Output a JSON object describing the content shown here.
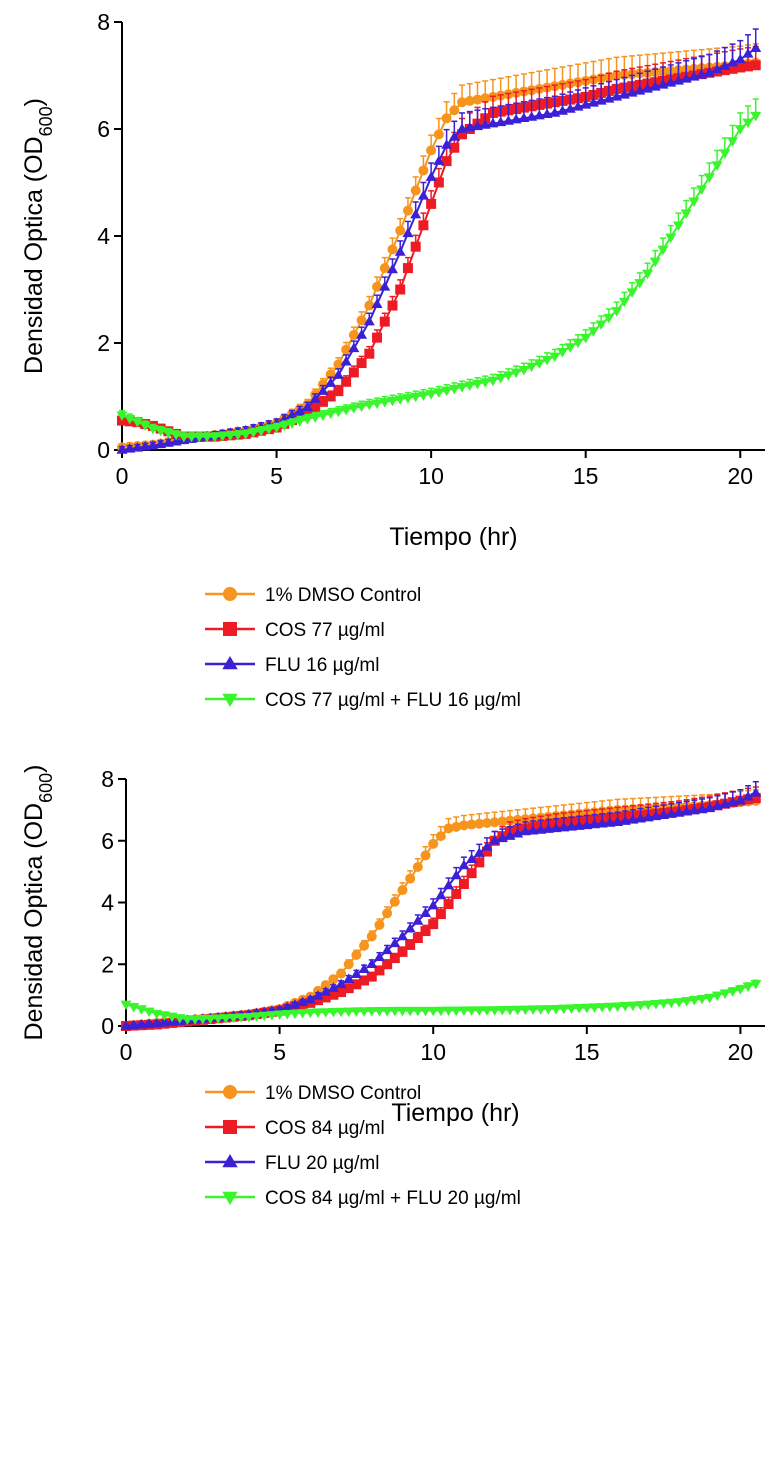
{
  "chart_data": [
    {
      "type": "line",
      "title": "",
      "xlabel": "Tiempo (hr)",
      "ylabel": {
        "main": "Densidad Optica (OD",
        "sub": "600",
        "close": ")"
      },
      "xlim": [
        0,
        20.8
      ],
      "ylim": [
        0,
        8
      ],
      "xticks": [
        "0",
        "5",
        "10",
        "15",
        "20"
      ],
      "yticks": [
        "0",
        "2",
        "4",
        "6",
        "8"
      ],
      "legend_position": "below",
      "series": [
        {
          "name": "1% DMSO Control",
          "color": "#f7941d",
          "marker": "circle",
          "points": [
            [
              0,
              0.05
            ],
            [
              1,
              0.1
            ],
            [
              2,
              0.2
            ],
            [
              3,
              0.28
            ],
            [
              4,
              0.36
            ],
            [
              5,
              0.5
            ],
            [
              6,
              0.85
            ],
            [
              7,
              1.6
            ],
            [
              8,
              2.7
            ],
            [
              9,
              4.1
            ],
            [
              10,
              5.6
            ],
            [
              10.5,
              6.2
            ],
            [
              11,
              6.5
            ],
            [
              12,
              6.6
            ],
            [
              13,
              6.7
            ],
            [
              14,
              6.8
            ],
            [
              15,
              6.9
            ],
            [
              16,
              7.0
            ],
            [
              17,
              7.05
            ],
            [
              18,
              7.1
            ],
            [
              19,
              7.15
            ],
            [
              20,
              7.2
            ],
            [
              20.6,
              7.25
            ]
          ]
        },
        {
          "name": "COS 77 µg/ml",
          "color": "#ed1c24",
          "marker": "square",
          "points": [
            [
              0,
              0.55
            ],
            [
              0.5,
              0.52
            ],
            [
              1,
              0.45
            ],
            [
              2,
              0.25
            ],
            [
              3,
              0.25
            ],
            [
              4,
              0.3
            ],
            [
              5,
              0.42
            ],
            [
              6,
              0.7
            ],
            [
              7,
              1.1
            ],
            [
              8,
              1.8
            ],
            [
              9,
              3.0
            ],
            [
              10,
              4.6
            ],
            [
              10.5,
              5.4
            ],
            [
              11,
              5.9
            ],
            [
              12,
              6.3
            ],
            [
              13,
              6.4
            ],
            [
              14,
              6.5
            ],
            [
              15,
              6.6
            ],
            [
              16,
              6.75
            ],
            [
              17,
              6.85
            ],
            [
              18,
              6.95
            ],
            [
              19,
              7.05
            ],
            [
              20,
              7.15
            ],
            [
              20.6,
              7.2
            ]
          ]
        },
        {
          "name": "FLU 16 µg/ml",
          "color": "#3b20d6",
          "marker": "triangle-up",
          "points": [
            [
              0,
              0.0
            ],
            [
              1,
              0.08
            ],
            [
              2,
              0.18
            ],
            [
              3,
              0.27
            ],
            [
              4,
              0.36
            ],
            [
              5,
              0.5
            ],
            [
              6,
              0.8
            ],
            [
              7,
              1.4
            ],
            [
              8,
              2.4
            ],
            [
              9,
              3.7
            ],
            [
              10,
              5.1
            ],
            [
              10.5,
              5.7
            ],
            [
              11,
              6.0
            ],
            [
              12,
              6.1
            ],
            [
              13,
              6.2
            ],
            [
              14,
              6.3
            ],
            [
              15,
              6.45
            ],
            [
              16,
              6.6
            ],
            [
              17,
              6.75
            ],
            [
              18,
              6.9
            ],
            [
              19,
              7.05
            ],
            [
              20,
              7.3
            ],
            [
              20.6,
              7.55
            ]
          ]
        },
        {
          "name": "COS 77 µg/ml + FLU 16 µg/ml",
          "color": "#39f52c",
          "marker": "triangle-down",
          "points": [
            [
              0,
              0.65
            ],
            [
              1,
              0.4
            ],
            [
              2,
              0.25
            ],
            [
              3,
              0.25
            ],
            [
              4,
              0.3
            ],
            [
              5,
              0.42
            ],
            [
              6,
              0.58
            ],
            [
              7,
              0.72
            ],
            [
              8,
              0.85
            ],
            [
              9,
              0.95
            ],
            [
              10,
              1.05
            ],
            [
              11,
              1.18
            ],
            [
              12,
              1.3
            ],
            [
              13,
              1.5
            ],
            [
              14,
              1.75
            ],
            [
              15,
              2.1
            ],
            [
              16,
              2.6
            ],
            [
              17,
              3.3
            ],
            [
              18,
              4.2
            ],
            [
              19,
              5.1
            ],
            [
              20,
              6.0
            ],
            [
              20.6,
              6.3
            ]
          ]
        }
      ]
    },
    {
      "type": "line",
      "title": "",
      "xlabel": "Tiempo (hr)",
      "ylabel": {
        "main": "Densidad Optica (OD",
        "sub": "600",
        "close": ")"
      },
      "xlim": [
        0,
        20.8
      ],
      "ylim": [
        0,
        8
      ],
      "xticks": [
        "0",
        "5",
        "10",
        "15",
        "20"
      ],
      "yticks": [
        "0",
        "2",
        "4",
        "6",
        "8"
      ],
      "legend_position": "below",
      "series": [
        {
          "name": "1% DMSO Control",
          "color": "#f7941d",
          "marker": "circle",
          "points": [
            [
              0,
              0.0
            ],
            [
              1,
              0.1
            ],
            [
              2,
              0.2
            ],
            [
              3,
              0.28
            ],
            [
              4,
              0.38
            ],
            [
              5,
              0.55
            ],
            [
              6,
              0.95
            ],
            [
              7,
              1.7
            ],
            [
              8,
              2.9
            ],
            [
              9,
              4.4
            ],
            [
              10,
              5.9
            ],
            [
              10.5,
              6.4
            ],
            [
              11,
              6.5
            ],
            [
              12,
              6.6
            ],
            [
              13,
              6.7
            ],
            [
              14,
              6.8
            ],
            [
              15,
              6.9
            ],
            [
              16,
              7.0
            ],
            [
              17,
              7.05
            ],
            [
              18,
              7.1
            ],
            [
              19,
              7.15
            ],
            [
              20,
              7.25
            ],
            [
              20.6,
              7.3
            ]
          ]
        },
        {
          "name": "COS 84 µg/ml",
          "color": "#ed1c24",
          "marker": "square",
          "points": [
            [
              0,
              0.0
            ],
            [
              1,
              0.05
            ],
            [
              2,
              0.15
            ],
            [
              3,
              0.25
            ],
            [
              4,
              0.35
            ],
            [
              5,
              0.5
            ],
            [
              6,
              0.75
            ],
            [
              7,
              1.1
            ],
            [
              8,
              1.6
            ],
            [
              9,
              2.4
            ],
            [
              10,
              3.3
            ],
            [
              11,
              4.6
            ],
            [
              12,
              6.0
            ],
            [
              12.5,
              6.3
            ],
            [
              13,
              6.4
            ],
            [
              14,
              6.55
            ],
            [
              15,
              6.65
            ],
            [
              16,
              6.75
            ],
            [
              17,
              6.85
            ],
            [
              18,
              6.95
            ],
            [
              19,
              7.1
            ],
            [
              20,
              7.3
            ],
            [
              20.6,
              7.4
            ]
          ]
        },
        {
          "name": "FLU 20 µg/ml",
          "color": "#3b20d6",
          "marker": "triangle-up",
          "points": [
            [
              0,
              0.0
            ],
            [
              1,
              0.08
            ],
            [
              2,
              0.18
            ],
            [
              3,
              0.27
            ],
            [
              4,
              0.37
            ],
            [
              5,
              0.52
            ],
            [
              6,
              0.85
            ],
            [
              7,
              1.35
            ],
            [
              8,
              2.0
            ],
            [
              9,
              2.9
            ],
            [
              10,
              3.9
            ],
            [
              11,
              5.2
            ],
            [
              12,
              6.0
            ],
            [
              13,
              6.3
            ],
            [
              14,
              6.4
            ],
            [
              15,
              6.5
            ],
            [
              16,
              6.6
            ],
            [
              17,
              6.75
            ],
            [
              18,
              6.9
            ],
            [
              19,
              7.05
            ],
            [
              20,
              7.3
            ],
            [
              20.6,
              7.6
            ]
          ]
        },
        {
          "name": "COS 84 µg/ml + FLU 20 µg/ml",
          "color": "#39f52c",
          "marker": "triangle-down",
          "points": [
            [
              0,
              0.7
            ],
            [
              1,
              0.4
            ],
            [
              2,
              0.22
            ],
            [
              3,
              0.25
            ],
            [
              4,
              0.3
            ],
            [
              5,
              0.38
            ],
            [
              6,
              0.44
            ],
            [
              7,
              0.47
            ],
            [
              8,
              0.49
            ],
            [
              9,
              0.5
            ],
            [
              10,
              0.5
            ],
            [
              11,
              0.51
            ],
            [
              12,
              0.52
            ],
            [
              13,
              0.54
            ],
            [
              14,
              0.56
            ],
            [
              15,
              0.6
            ],
            [
              16,
              0.64
            ],
            [
              17,
              0.7
            ],
            [
              18,
              0.78
            ],
            [
              19,
              0.92
            ],
            [
              20,
              1.2
            ],
            [
              20.6,
              1.4
            ]
          ]
        }
      ]
    }
  ]
}
